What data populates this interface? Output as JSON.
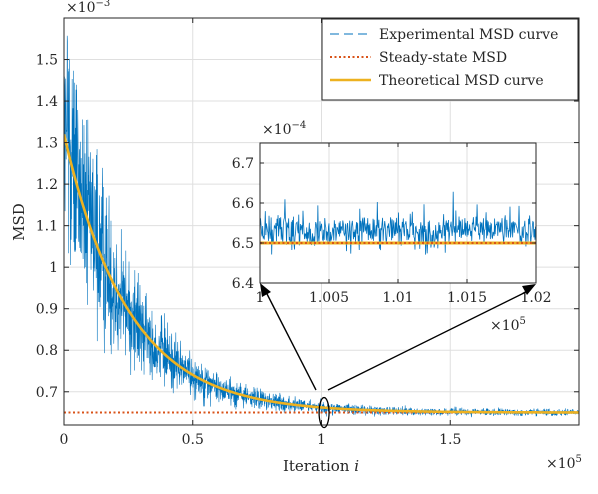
{
  "chart_data": [
    {
      "type": "line",
      "panel": "main",
      "xlabel": "Iteration",
      "xlabel_var": "i",
      "ylabel": "MSD",
      "xlim": [
        0,
        200000
      ],
      "ylim": [
        0.00062,
        0.0016
      ],
      "x_ticks": [
        0,
        0.5,
        1,
        1.5
      ],
      "y_ticks": [
        0.7,
        0.8,
        0.9,
        1,
        1.1,
        1.2,
        1.3,
        1.4,
        1.5
      ],
      "x_multiplier": "×10",
      "x_multiplier_exp": "5",
      "y_multiplier": "×10",
      "y_multiplier_exp": "−3",
      "grid": true,
      "legend_position": "top-right",
      "series": [
        {
          "name": "Experimental MSD curve",
          "style": "dashed",
          "color": "#0072BD",
          "start_value": 0.00132,
          "steady_value": 0.00065,
          "decay_iterations": 25000,
          "noise_relative": 0.22,
          "noise_peak": 0.0015
        },
        {
          "name": "Steady-state MSD",
          "style": "dotted",
          "color": "#D95319",
          "value": 0.00065
        },
        {
          "name": "Theoretical MSD curve",
          "style": "solid",
          "color": "#EDB120",
          "start_value": 0.00132,
          "steady_value": 0.00065,
          "decay_iterations": 25000
        }
      ],
      "annotation": {
        "type": "ellipse",
        "x": 101000,
        "y": 0.00065,
        "note": "zoom region"
      }
    },
    {
      "type": "line",
      "panel": "inset",
      "xlim": [
        100000,
        102000
      ],
      "ylim": [
        0.00064,
        0.000675
      ],
      "x_ticks": [
        "1",
        "1.005",
        "1.01",
        "1.015",
        "1.02"
      ],
      "x_tick_values": [
        1,
        1.005,
        1.01,
        1.015,
        1.02
      ],
      "y_ticks": [
        6.4,
        6.5,
        6.6,
        6.7
      ],
      "x_multiplier": "×10",
      "x_multiplier_exp": "5",
      "y_multiplier": "×10",
      "y_multiplier_exp": "−4",
      "grid": true,
      "experimental_mean": 0.000653,
      "experimental_spread": 4e-06,
      "steady_value": 0.00065,
      "theoretical_value": 0.00065
    }
  ]
}
